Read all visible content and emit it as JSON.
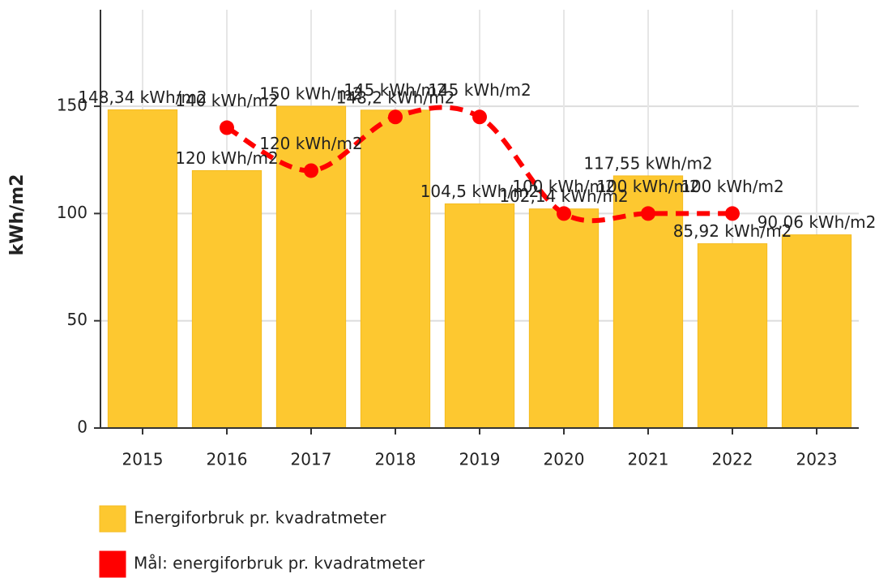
{
  "chart_data": {
    "type": "bar",
    "y_label": "kWh/m2",
    "categories": [
      "2015",
      "2016",
      "2017",
      "2018",
      "2019",
      "2020",
      "2021",
      "2022",
      "2023"
    ],
    "ylim": [
      0,
      195
    ],
    "yticks": [
      0,
      50,
      100,
      150
    ],
    "grid": true,
    "series": [
      {
        "name": "Energiforbruk pr. kvadratmeter",
        "type": "bar",
        "color": "#fdc830",
        "values": [
          148.34,
          120,
          150,
          148.2,
          104.5,
          102.14,
          117.55,
          85.92,
          90.06
        ],
        "value_labels": [
          "148,34 kWh/m2",
          "120 kWh/m2",
          "150 kWh/m2",
          "148,2 kWh/m2",
          "104,5 kWh/m2",
          "102,14 kWh/m2",
          "117,55 kWh/m2",
          "85,92 kWh/m2",
          "90,06 kWh/m2"
        ]
      },
      {
        "name": "Mål: energiforbruk pr. kvadratmeter",
        "type": "line",
        "color": "#ff0000",
        "values": [
          null,
          140,
          120,
          145,
          145,
          100,
          100,
          100,
          null
        ],
        "value_labels": [
          null,
          "140 kWh/m2",
          "120 kWh/m2",
          "145 kWh/m2",
          "145 kWh/m2",
          "100 kWh/m2",
          "100 kWh/m2",
          "100 kWh/m2",
          null
        ]
      }
    ]
  }
}
